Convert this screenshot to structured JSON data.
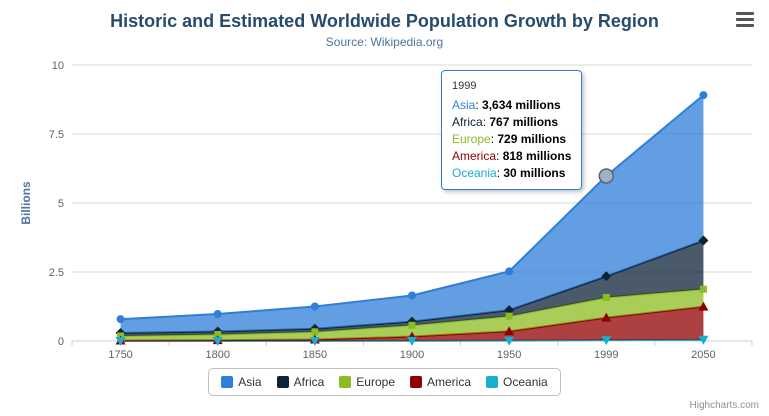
{
  "chart": {
    "credits": "Highcharts.com",
    "menu_icon": "hamburger"
  },
  "chart_data": {
    "type": "area",
    "stacking": "normal",
    "title": "Historic and Estimated Worldwide Population Growth by Region",
    "subtitle": "Source: Wikipedia.org",
    "xlabel": "",
    "ylabel": "Billions",
    "ylim": [
      0,
      10
    ],
    "yticks": [
      0,
      2.5,
      5,
      7.5,
      10
    ],
    "categories": [
      "1750",
      "1800",
      "1850",
      "1900",
      "1950",
      "1999",
      "2050"
    ],
    "value_unit": "millions",
    "grid": true,
    "legend_position": "bottom",
    "series": [
      {
        "name": "Asia",
        "color": "#2f7ed8",
        "marker": "circle",
        "values": [
          502,
          635,
          809,
          947,
          1402,
          3634,
          5268
        ]
      },
      {
        "name": "Africa",
        "color": "#0d233a",
        "marker": "diamond",
        "values": [
          106,
          107,
          111,
          133,
          221,
          767,
          1766
        ]
      },
      {
        "name": "Europe",
        "color": "#8bbc21",
        "marker": "square",
        "values": [
          163,
          203,
          276,
          408,
          547,
          729,
          628
        ]
      },
      {
        "name": "America",
        "color": "#910000",
        "marker": "triangle",
        "values": [
          18,
          31,
          54,
          156,
          339,
          818,
          1201
        ]
      },
      {
        "name": "Oceania",
        "color": "#1aadce",
        "marker": "triangle-down",
        "values": [
          2,
          2,
          2,
          6,
          13,
          30,
          46
        ]
      }
    ],
    "tooltip": {
      "header": "1999",
      "category_index": 5,
      "hovered_series": "Asia",
      "hover_marker": {
        "fill": "#9fb2c4",
        "stroke": "#53677a"
      },
      "rows": [
        {
          "name": "Asia",
          "value_text": "3,634 millions"
        },
        {
          "name": "Africa",
          "value_text": "767 millions"
        },
        {
          "name": "Europe",
          "value_text": "729 millions"
        },
        {
          "name": "America",
          "value_text": "818 millions"
        },
        {
          "name": "Oceania",
          "value_text": "30 millions"
        }
      ]
    },
    "colors": {
      "title": "#274b6d",
      "subtitle": "#4d759e",
      "axis_label": "#606060",
      "axis_title": "#4d759e",
      "grid_line": "#d8d8d8",
      "axis_line": "#c0d0e0",
      "legend_border": "#c0c0c0",
      "legend_text": "#333333",
      "tooltip_border": "#2f7ed8",
      "credits": "#909090"
    }
  }
}
